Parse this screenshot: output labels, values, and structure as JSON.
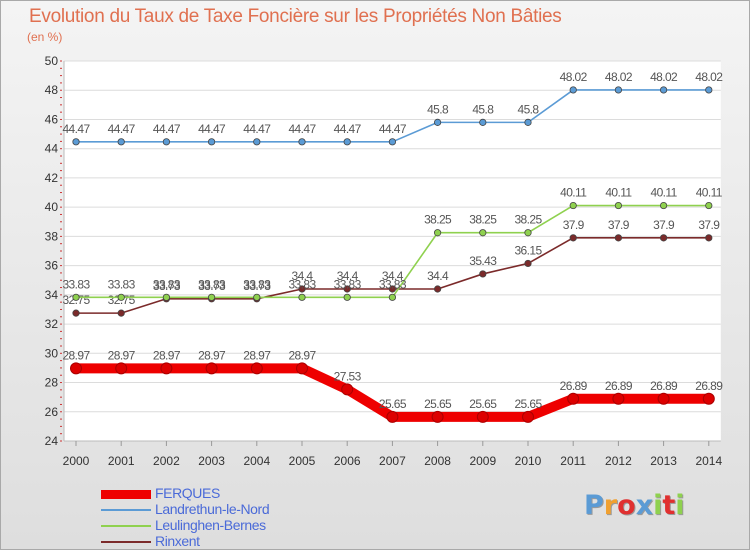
{
  "title": "Evolution du Taux de Taxe Foncière sur les Propriétés Non Bâties",
  "subtitle": "(en %)",
  "brand": "Proxiti",
  "chart_data": {
    "type": "line",
    "title": "Evolution du Taux de Taxe Foncière sur les Propriétés Non Bâties",
    "ylabel": "(en %)",
    "xlabel": "",
    "ylim": [
      24,
      50
    ],
    "yticks": [
      24,
      26,
      28,
      30,
      32,
      34,
      36,
      38,
      40,
      42,
      44,
      46,
      48,
      50
    ],
    "grid": "horizontal",
    "legend_position": "bottom-left",
    "categories": [
      "2000",
      "2001",
      "2002",
      "2003",
      "2004",
      "2005",
      "2006",
      "2007",
      "2008",
      "2009",
      "2010",
      "2011",
      "2012",
      "2013",
      "2014"
    ],
    "series": [
      {
        "name": "FERQUES",
        "color": "#ee0000",
        "values": [
          28.97,
          28.97,
          28.97,
          28.97,
          28.97,
          28.97,
          27.53,
          25.65,
          25.65,
          25.65,
          25.65,
          26.89,
          26.89,
          26.89,
          26.89
        ],
        "labels": [
          "28.97",
          "28.97",
          "28.97",
          "28.97",
          "28.97",
          "28.97",
          "27.53",
          "25.65",
          "25.65",
          "25.65",
          "25.65",
          "26.89",
          "26.89",
          "26.89",
          "26.89"
        ]
      },
      {
        "name": "Landrethun-le-Nord",
        "color": "#5b9bd5",
        "values": [
          44.47,
          44.47,
          44.47,
          44.47,
          44.47,
          44.47,
          44.47,
          44.47,
          45.8,
          45.8,
          45.8,
          48.02,
          48.02,
          48.02,
          48.02
        ],
        "labels": [
          "44.47",
          "44.47",
          "44.47",
          "44.47",
          "44.47",
          "44.47",
          "44.47",
          "44.47",
          "45.8",
          "45.8",
          "45.8",
          "48.02",
          "48.02",
          "48.02",
          "48.02"
        ]
      },
      {
        "name": "Leulinghen-Bernes",
        "color": "#8fd14f",
        "values": [
          33.83,
          33.83,
          33.83,
          33.83,
          33.83,
          33.83,
          33.83,
          33.83,
          38.25,
          38.25,
          38.25,
          40.11,
          40.11,
          40.11,
          40.11
        ],
        "labels": [
          "33.83",
          "33.83",
          "33.83",
          "33.83",
          "33.83",
          "33.83",
          "33.83",
          "33.83",
          "38.25",
          "38.25",
          "38.25",
          "40.11",
          "40.11",
          "40.11",
          "40.11"
        ]
      },
      {
        "name": "Rinxent",
        "color": "#7b2a2a",
        "values": [
          32.75,
          32.75,
          33.73,
          33.73,
          33.73,
          34.4,
          34.4,
          34.4,
          34.4,
          35.43,
          36.15,
          37.9,
          37.9,
          37.9,
          37.9
        ],
        "labels": [
          "32.75",
          "32.75",
          "33.73",
          "33.73",
          "33.73",
          "34.4",
          "34.4",
          "34.4",
          "34.4",
          "35.43",
          "36.15",
          "37.9",
          "37.9",
          "37.9",
          "37.9"
        ]
      }
    ]
  }
}
